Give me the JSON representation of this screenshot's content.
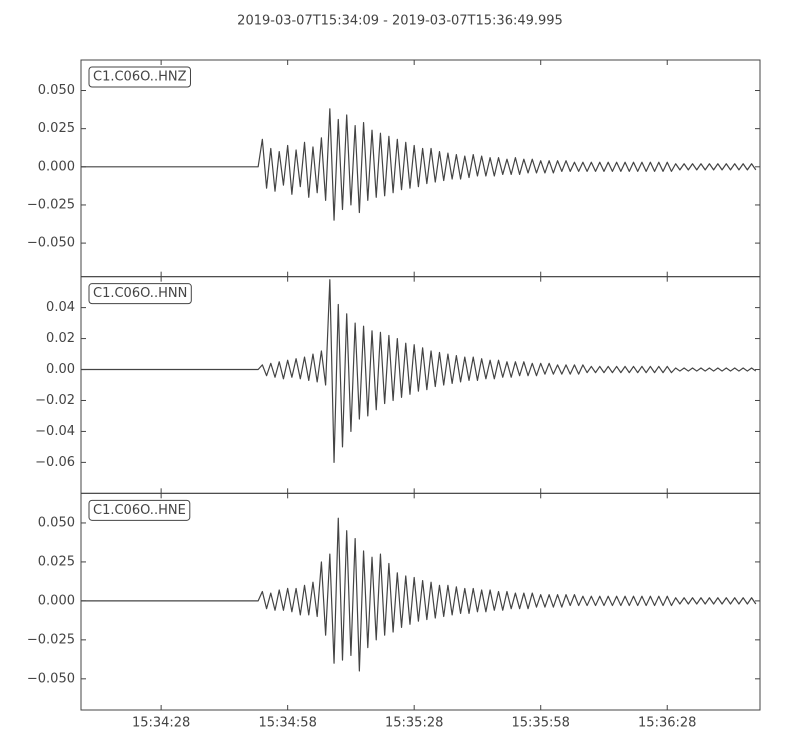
{
  "chart_data": {
    "type": "line",
    "title": "2019-03-07T15:34:09  -  2019-03-07T15:36:49.995",
    "x": [
      0,
      1,
      2,
      3,
      4,
      5,
      6,
      7,
      8,
      9,
      10,
      11,
      12,
      13,
      14,
      15,
      16,
      17,
      18,
      19,
      20,
      21,
      22,
      23,
      24,
      25,
      26,
      27,
      28,
      29,
      30,
      31,
      32,
      33,
      34,
      35,
      36,
      37,
      38,
      39,
      40,
      41,
      42,
      43,
      44,
      45,
      46,
      47,
      48,
      49,
      50,
      51,
      52,
      53,
      54,
      55,
      56,
      57,
      58,
      59,
      60,
      61,
      62,
      63,
      64,
      65,
      66,
      67,
      68,
      69,
      70,
      71,
      72,
      73,
      74,
      75,
      76,
      77,
      78,
      79,
      80,
      81,
      82,
      83,
      84,
      85,
      86,
      87,
      88,
      89,
      90,
      91,
      92,
      93,
      94,
      95,
      96,
      97,
      98,
      99,
      100,
      101,
      102,
      103,
      104,
      105,
      106,
      107,
      108,
      109,
      110,
      111,
      112,
      113,
      114,
      115,
      116,
      117,
      118,
      119,
      120,
      121,
      122,
      123,
      124,
      125,
      126,
      127,
      128,
      129,
      130,
      131,
      132,
      133,
      134,
      135,
      136,
      137,
      138,
      139,
      140,
      141,
      142,
      143,
      144,
      145,
      146,
      147,
      148,
      149,
      150,
      151,
      152,
      153,
      154,
      155,
      156,
      157,
      158,
      159,
      160
    ],
    "xlim": [
      0,
      160.995
    ],
    "xticks": [
      {
        "value": 19,
        "label": "15:34:28"
      },
      {
        "value": 49,
        "label": "15:34:58"
      },
      {
        "value": 79,
        "label": "15:35:28"
      },
      {
        "value": 109,
        "label": "15:35:58"
      },
      {
        "value": 139,
        "label": "15:36:28"
      }
    ],
    "series": [
      {
        "name": "C1.C06O..HNZ",
        "color": "#444444",
        "ylim": [
          -0.072,
          0.07
        ],
        "yticks": [
          {
            "value": 0.05,
            "label": "0.050"
          },
          {
            "value": 0.025,
            "label": "0.025"
          },
          {
            "value": 0,
            "label": "0.000"
          },
          {
            "value": -0.025,
            "label": "−0.025"
          },
          {
            "value": -0.05,
            "label": "−0.050"
          }
        ],
        "values": [
          0,
          0,
          0,
          0,
          0,
          0,
          0,
          0,
          0,
          0,
          0,
          0,
          0,
          0,
          0,
          0,
          0,
          0,
          0,
          0,
          0,
          0,
          0,
          0,
          0,
          0,
          0,
          0,
          0,
          0,
          0,
          0,
          0,
          0,
          0,
          0,
          0,
          0,
          0,
          0,
          0,
          0,
          0,
          0.018,
          -0.014,
          0.012,
          -0.016,
          0.01,
          -0.012,
          0.014,
          -0.018,
          0.011,
          -0.013,
          0.016,
          -0.02,
          0.013,
          -0.017,
          0.019,
          -0.022,
          0.038,
          -0.035,
          0.031,
          -0.028,
          0.034,
          -0.025,
          0.027,
          -0.03,
          0.029,
          -0.022,
          0.024,
          -0.02,
          0.022,
          -0.019,
          0.02,
          -0.017,
          0.018,
          -0.015,
          0.016,
          -0.014,
          0.014,
          -0.013,
          0.012,
          -0.011,
          0.012,
          -0.01,
          0.01,
          -0.009,
          0.009,
          -0.008,
          0.008,
          -0.008,
          0.007,
          -0.007,
          0.008,
          -0.006,
          0.007,
          -0.006,
          0.006,
          -0.006,
          0.006,
          -0.005,
          0.005,
          -0.005,
          0.006,
          -0.005,
          0.005,
          -0.004,
          0.005,
          -0.004,
          0.004,
          -0.004,
          0.004,
          -0.004,
          0.004,
          -0.003,
          0.004,
          -0.003,
          0.003,
          -0.003,
          0.003,
          -0.003,
          0.003,
          -0.003,
          0.003,
          -0.003,
          0.003,
          -0.003,
          0.003,
          -0.003,
          0.003,
          -0.003,
          0.003,
          -0.003,
          0.003,
          -0.003,
          0.003,
          -0.003,
          0.003,
          -0.003,
          0.003,
          -0.003,
          0.002,
          -0.002,
          0.002,
          -0.002,
          0.002,
          -0.002,
          0.002,
          -0.002,
          0.002,
          -0.002,
          0.002,
          -0.002,
          0.002,
          -0.002,
          0.002,
          -0.002,
          0.002,
          -0.002,
          0.002,
          -0.002
        ]
      },
      {
        "name": "C1.C06O..HNN",
        "color": "#444444",
        "ylim": [
          -0.08,
          0.06
        ],
        "yticks": [
          {
            "value": 0.04,
            "label": "0.04"
          },
          {
            "value": 0.02,
            "label": "0.02"
          },
          {
            "value": 0,
            "label": "0.00"
          },
          {
            "value": -0.02,
            "label": "−0.02"
          },
          {
            "value": -0.04,
            "label": "−0.04"
          },
          {
            "value": -0.06,
            "label": "−0.06"
          }
        ],
        "values": [
          0,
          0,
          0,
          0,
          0,
          0,
          0,
          0,
          0,
          0,
          0,
          0,
          0,
          0,
          0,
          0,
          0,
          0,
          0,
          0,
          0,
          0,
          0,
          0,
          0,
          0,
          0,
          0,
          0,
          0,
          0,
          0,
          0,
          0,
          0,
          0,
          0,
          0,
          0,
          0,
          0,
          0,
          0,
          0.003,
          -0.004,
          0.004,
          -0.005,
          0.005,
          -0.006,
          0.006,
          -0.005,
          0.007,
          -0.006,
          0.008,
          -0.007,
          0.01,
          -0.008,
          0.012,
          -0.01,
          0.058,
          -0.06,
          0.042,
          -0.05,
          0.036,
          -0.04,
          0.03,
          -0.032,
          0.028,
          -0.03,
          0.025,
          -0.026,
          0.024,
          -0.022,
          0.022,
          -0.02,
          0.02,
          -0.018,
          0.017,
          -0.016,
          0.016,
          -0.014,
          0.014,
          -0.013,
          0.012,
          -0.011,
          0.011,
          -0.01,
          0.01,
          -0.009,
          0.009,
          -0.008,
          0.008,
          -0.007,
          0.008,
          -0.007,
          0.007,
          -0.006,
          0.006,
          -0.006,
          0.006,
          -0.005,
          0.005,
          -0.005,
          0.005,
          -0.004,
          0.005,
          -0.004,
          0.004,
          -0.004,
          0.004,
          -0.003,
          0.004,
          -0.003,
          0.003,
          -0.003,
          0.003,
          -0.003,
          0.003,
          -0.003,
          0.003,
          -0.002,
          0.002,
          -0.002,
          0.002,
          -0.002,
          0.002,
          -0.002,
          0.002,
          -0.002,
          0.002,
          -0.002,
          0.002,
          -0.002,
          0.002,
          -0.002,
          0.002,
          -0.002,
          0.002,
          -0.002,
          0.002,
          -0.002,
          0.001,
          -0.001,
          0.001,
          -0.001,
          0.001,
          -0.001,
          0.001,
          -0.001,
          0.001,
          -0.001,
          0.001,
          -0.001,
          0.001,
          -0.001,
          0.001,
          -0.001,
          0.001,
          -0.001,
          0.001,
          -0.001
        ]
      },
      {
        "name": "C1.C06O..HNE",
        "color": "#444444",
        "ylim": [
          -0.07,
          0.069
        ],
        "yticks": [
          {
            "value": 0.05,
            "label": "0.050"
          },
          {
            "value": 0.025,
            "label": "0.025"
          },
          {
            "value": 0,
            "label": "0.000"
          },
          {
            "value": -0.025,
            "label": "−0.025"
          },
          {
            "value": -0.05,
            "label": "−0.050"
          }
        ],
        "values": [
          0,
          0,
          0,
          0,
          0,
          0,
          0,
          0,
          0,
          0,
          0,
          0,
          0,
          0,
          0,
          0,
          0,
          0,
          0,
          0,
          0,
          0,
          0,
          0,
          0,
          0,
          0,
          0,
          0,
          0,
          0,
          0,
          0,
          0,
          0,
          0,
          0,
          0,
          0,
          0,
          0,
          0,
          0,
          0.006,
          -0.005,
          0.005,
          -0.006,
          0.007,
          -0.006,
          0.008,
          -0.007,
          0.008,
          -0.009,
          0.01,
          -0.009,
          0.012,
          -0.01,
          0.025,
          -0.022,
          0.03,
          -0.04,
          0.053,
          -0.038,
          0.045,
          -0.035,
          0.04,
          -0.045,
          0.032,
          -0.03,
          0.028,
          -0.025,
          0.03,
          -0.022,
          0.024,
          -0.02,
          0.018,
          -0.017,
          0.016,
          -0.015,
          0.015,
          -0.013,
          0.013,
          -0.012,
          0.012,
          -0.011,
          0.01,
          -0.01,
          0.01,
          -0.009,
          0.009,
          -0.008,
          0.008,
          -0.008,
          0.008,
          -0.007,
          0.007,
          -0.007,
          0.007,
          -0.006,
          0.006,
          -0.006,
          0.006,
          -0.005,
          0.005,
          -0.005,
          0.005,
          -0.005,
          0.005,
          -0.004,
          0.004,
          -0.004,
          0.004,
          -0.004,
          0.004,
          -0.004,
          0.004,
          -0.003,
          0.004,
          -0.003,
          0.003,
          -0.003,
          0.003,
          -0.003,
          0.003,
          -0.003,
          0.003,
          -0.003,
          0.003,
          -0.003,
          0.003,
          -0.003,
          0.003,
          -0.003,
          0.003,
          -0.003,
          0.003,
          -0.003,
          0.003,
          -0.003,
          0.003,
          -0.003,
          0.002,
          -0.002,
          0.002,
          -0.002,
          0.002,
          -0.002,
          0.002,
          -0.002,
          0.002,
          -0.002,
          0.002,
          -0.002,
          0.002,
          -0.002,
          0.002,
          -0.002,
          0.002,
          -0.002,
          0.002,
          -0.002
        ]
      }
    ]
  }
}
